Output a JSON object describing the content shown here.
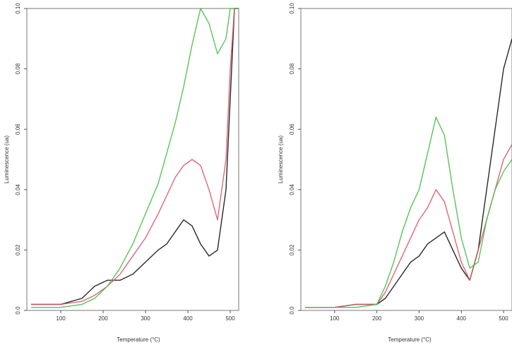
{
  "chart_data": [
    {
      "type": "line",
      "xlabel": "Temperature (°C)",
      "ylabel": "Luminescence (ua)",
      "xlim": [
        20,
        520
      ],
      "ylim": [
        0,
        0.1
      ],
      "x_ticks": [
        100,
        200,
        300,
        400,
        500
      ],
      "y_ticks": [
        0,
        0.02,
        0.04,
        0.06,
        0.08,
        0.1
      ],
      "x_tick_labels": [
        "100",
        "200",
        "300",
        "400",
        "500"
      ],
      "y_tick_labels": [
        "0.0",
        "0.02",
        "0.04",
        "0.06",
        "0.08",
        "0.10"
      ],
      "grid": false,
      "series": [
        {
          "color": "#111111",
          "x": [
            30,
            100,
            150,
            180,
            210,
            240,
            270,
            300,
            330,
            350,
            370,
            390,
            410,
            430,
            450,
            470,
            490,
            500,
            510,
            520
          ],
          "values": [
            0.002,
            0.002,
            0.004,
            0.008,
            0.01,
            0.01,
            0.012,
            0.016,
            0.02,
            0.022,
            0.026,
            0.03,
            0.028,
            0.022,
            0.018,
            0.02,
            0.04,
            0.07,
            0.1,
            0.1
          ]
        },
        {
          "color": "#d9566a",
          "x": [
            30,
            100,
            150,
            180,
            210,
            240,
            270,
            300,
            330,
            350,
            370,
            390,
            410,
            430,
            450,
            470,
            490,
            500,
            510,
            520
          ],
          "values": [
            0.002,
            0.002,
            0.003,
            0.005,
            0.008,
            0.012,
            0.018,
            0.024,
            0.032,
            0.038,
            0.044,
            0.048,
            0.05,
            0.048,
            0.04,
            0.03,
            0.05,
            0.08,
            0.1,
            0.1
          ]
        },
        {
          "color": "#45bf45",
          "x": [
            30,
            100,
            150,
            180,
            210,
            240,
            270,
            300,
            330,
            350,
            370,
            390,
            410,
            430,
            450,
            470,
            490,
            500,
            510,
            520
          ],
          "values": [
            0.001,
            0.001,
            0.002,
            0.004,
            0.008,
            0.014,
            0.022,
            0.032,
            0.042,
            0.052,
            0.062,
            0.074,
            0.088,
            0.1,
            0.095,
            0.085,
            0.09,
            0.1,
            0.1,
            0.1
          ]
        }
      ]
    },
    {
      "type": "line",
      "xlabel": "Temperature (°C)",
      "ylabel": "Luminescence (ua)",
      "xlim": [
        20,
        520
      ],
      "ylim": [
        0,
        0.1
      ],
      "x_ticks": [
        100,
        200,
        300,
        400,
        500
      ],
      "y_ticks": [
        0,
        0.02,
        0.04,
        0.06,
        0.08,
        0.1
      ],
      "x_tick_labels": [
        "100",
        "200",
        "300",
        "400",
        "500"
      ],
      "y_tick_labels": [
        "0.0",
        "0.02",
        "0.04",
        "0.06",
        "0.08",
        "0.10"
      ],
      "grid": false,
      "series": [
        {
          "color": "#111111",
          "x": [
            30,
            100,
            150,
            200,
            220,
            240,
            260,
            280,
            300,
            320,
            340,
            360,
            380,
            400,
            420,
            440,
            460,
            480,
            500,
            520
          ],
          "values": [
            0.001,
            0.001,
            0.002,
            0.002,
            0.004,
            0.008,
            0.012,
            0.016,
            0.018,
            0.022,
            0.024,
            0.026,
            0.02,
            0.014,
            0.01,
            0.02,
            0.04,
            0.06,
            0.08,
            0.09
          ]
        },
        {
          "color": "#d9566a",
          "x": [
            30,
            100,
            150,
            200,
            220,
            240,
            260,
            280,
            300,
            320,
            340,
            360,
            380,
            400,
            420,
            440,
            460,
            480,
            500,
            520
          ],
          "values": [
            0.001,
            0.001,
            0.002,
            0.002,
            0.006,
            0.012,
            0.018,
            0.024,
            0.03,
            0.034,
            0.04,
            0.036,
            0.026,
            0.016,
            0.01,
            0.02,
            0.03,
            0.04,
            0.05,
            0.055
          ]
        },
        {
          "color": "#45bf45",
          "x": [
            30,
            100,
            150,
            200,
            220,
            240,
            260,
            280,
            300,
            320,
            340,
            360,
            380,
            400,
            420,
            440,
            460,
            480,
            500,
            520
          ],
          "values": [
            0.001,
            0.001,
            0.001,
            0.002,
            0.008,
            0.016,
            0.026,
            0.034,
            0.04,
            0.052,
            0.064,
            0.058,
            0.04,
            0.024,
            0.014,
            0.016,
            0.03,
            0.04,
            0.046,
            0.05
          ]
        }
      ]
    }
  ]
}
